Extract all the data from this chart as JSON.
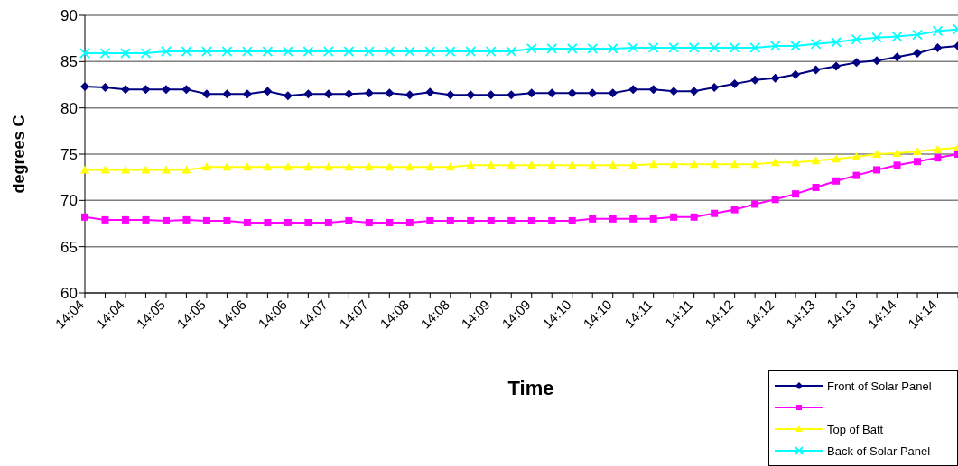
{
  "chart_data": {
    "type": "line",
    "xlabel": "Time",
    "ylabel": "degrees C",
    "categories": [
      "14:04",
      null,
      "14:04",
      null,
      "14:05",
      null,
      "14:05",
      null,
      "14:06",
      null,
      "14:06",
      null,
      "14:07",
      null,
      "14:07",
      null,
      "14:08",
      null,
      "14:08",
      null,
      "14:09",
      null,
      "14:09",
      null,
      "14:10",
      null,
      "14:10",
      null,
      "14:11",
      null,
      "14:11",
      null,
      "14:12",
      null,
      "14:12",
      null,
      "14:13",
      null,
      "14:13",
      null,
      "14:14",
      null,
      "14:14",
      null
    ],
    "series": [
      {
        "name": "Front of Solar Panel",
        "color": "#000080",
        "marker": "diamond",
        "values": [
          82.3,
          82.2,
          82.0,
          82.0,
          82.0,
          82.0,
          81.5,
          81.5,
          81.5,
          81.8,
          81.3,
          81.5,
          81.5,
          81.5,
          81.6,
          81.6,
          81.4,
          81.7,
          81.4,
          81.4,
          81.4,
          81.4,
          81.6,
          81.6,
          81.6,
          81.6,
          81.6,
          82.0,
          82.0,
          81.8,
          81.8,
          82.2,
          82.6,
          83.0,
          83.2,
          83.6,
          84.1,
          84.5,
          84.9,
          85.1,
          85.5,
          85.9,
          86.5,
          86.7
        ]
      },
      {
        "color": "#ff00ff",
        "marker": "square",
        "values": [
          68.2,
          67.9,
          67.9,
          67.9,
          67.8,
          67.9,
          67.8,
          67.8,
          67.6,
          67.6,
          67.6,
          67.6,
          67.6,
          67.8,
          67.6,
          67.6,
          67.6,
          67.8,
          67.8,
          67.8,
          67.8,
          67.8,
          67.8,
          67.8,
          67.8,
          68.0,
          68.0,
          68.0,
          68.0,
          68.2,
          68.2,
          68.6,
          69.0,
          69.6,
          70.1,
          70.7,
          71.4,
          72.1,
          72.7,
          73.3,
          73.8,
          74.2,
          74.6,
          75.0
        ]
      },
      {
        "name": "Top of Batt",
        "color": "#ffff00",
        "marker": "triangle",
        "values": [
          73.3,
          73.3,
          73.3,
          73.3,
          73.3,
          73.3,
          73.6,
          73.6,
          73.6,
          73.6,
          73.6,
          73.6,
          73.6,
          73.6,
          73.6,
          73.6,
          73.6,
          73.6,
          73.6,
          73.8,
          73.8,
          73.8,
          73.8,
          73.8,
          73.8,
          73.8,
          73.8,
          73.8,
          73.9,
          73.9,
          73.9,
          73.9,
          73.9,
          73.9,
          74.1,
          74.1,
          74.3,
          74.5,
          74.7,
          75.0,
          75.1,
          75.3,
          75.5,
          75.7
        ]
      },
      {
        "name": "Back of Solar Panel",
        "color": "#00ffff",
        "marker": "cross",
        "values": [
          85.9,
          85.9,
          85.9,
          85.9,
          86.1,
          86.1,
          86.1,
          86.1,
          86.1,
          86.1,
          86.1,
          86.1,
          86.1,
          86.1,
          86.1,
          86.1,
          86.1,
          86.1,
          86.1,
          86.1,
          86.1,
          86.1,
          86.4,
          86.4,
          86.4,
          86.4,
          86.4,
          86.5,
          86.5,
          86.5,
          86.5,
          86.5,
          86.5,
          86.5,
          86.7,
          86.7,
          86.9,
          87.1,
          87.4,
          87.6,
          87.7,
          87.9,
          88.3,
          88.5
        ]
      }
    ],
    "ylim": [
      60,
      90
    ],
    "yticks": [
      60,
      65,
      70,
      75,
      80,
      85,
      90
    ],
    "grid": "y",
    "legend": "bottom right",
    "line_style": "solid"
  }
}
